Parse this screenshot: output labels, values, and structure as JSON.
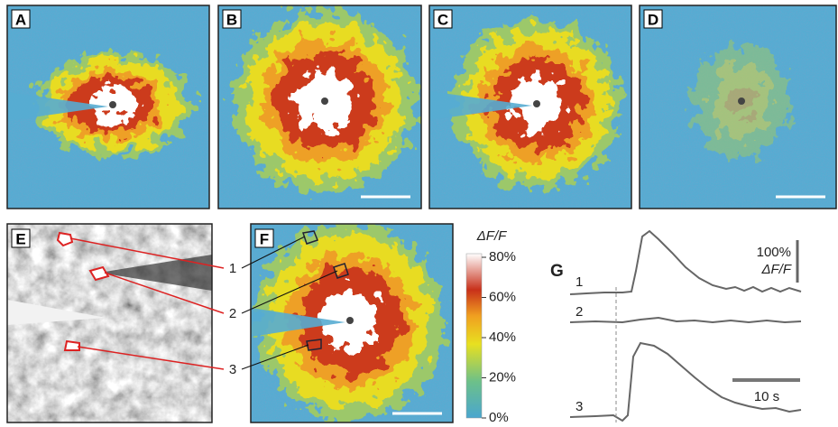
{
  "panel_labels": [
    "A",
    "B",
    "C",
    "D",
    "E",
    "F",
    "G"
  ],
  "roi_labels": [
    "1",
    "2",
    "3"
  ],
  "colorbar": {
    "title": "ΔF/F",
    "range": [
      0,
      80
    ],
    "ticks": [
      {
        "value": 80,
        "label": "80%"
      },
      {
        "value": 60,
        "label": "60%"
      },
      {
        "value": 40,
        "label": "40%"
      },
      {
        "value": 20,
        "label": "20%"
      },
      {
        "value": 0,
        "label": "0%"
      }
    ]
  },
  "trace_labels": [
    "1",
    "2",
    "3"
  ],
  "scale_bars": {
    "amplitude": [
      "100%",
      "ΔF/F"
    ],
    "time": "10 s"
  }
}
